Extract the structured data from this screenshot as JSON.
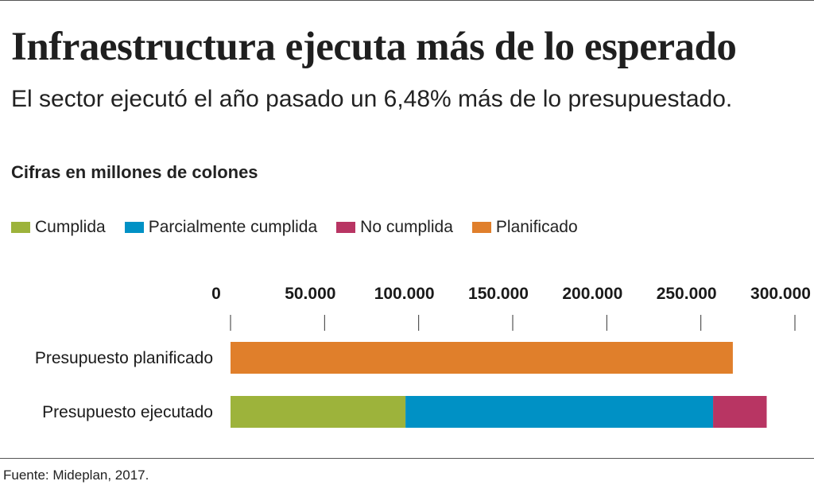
{
  "header": {
    "title": "Infraestructura ejecuta más de lo esperado",
    "subtitle": "El sector ejecutó el año pasado un 6,48% más de lo presupuestado.",
    "units": "Cifras en millones de colones"
  },
  "footer": {
    "source": "Fuente:  Mideplan, 2017."
  },
  "chart_data": {
    "type": "bar",
    "orientation": "horizontal",
    "stacked": true,
    "xlim": [
      0,
      300000
    ],
    "x_ticks": [
      0,
      50000,
      100000,
      150000,
      200000,
      250000,
      300000
    ],
    "x_tick_labels": [
      "0",
      "50.000",
      "100.000",
      "150.000",
      "200.000",
      "250.000",
      "300.000"
    ],
    "axis_position": "top",
    "grid": false,
    "legend_position": "top-left",
    "categories": [
      "Presupuesto planificado",
      "Presupuesto ejecutado"
    ],
    "series": [
      {
        "name": "Cumplida",
        "color": "#9db33b",
        "values": [
          0,
          93000
        ]
      },
      {
        "name": "Parcialmente cumplida",
        "color": "#0091c5",
        "values": [
          0,
          163500
        ]
      },
      {
        "name": "No cumplida",
        "color": "#b83563",
        "values": [
          0,
          28500
        ]
      },
      {
        "name": "Planificado",
        "color": "#e07f2b",
        "values": [
          267000,
          0
        ]
      }
    ]
  }
}
